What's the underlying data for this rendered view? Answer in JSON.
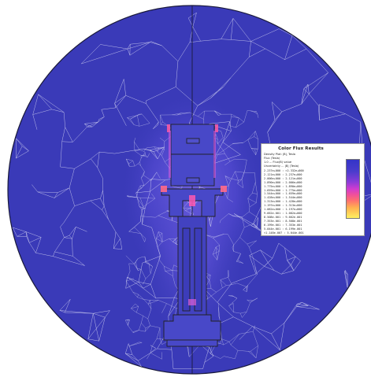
{
  "legend": {
    "title": "Color Flux Results",
    "meta_lines": [
      "Density Plot: |B|, Tesla",
      "Flux (Tesla)",
      "1.0 ... Flux(B) value",
      "Uncertainty ... |B| (Tesla)"
    ],
    "rows": [
      "2.237e+000 : >2.332e+000",
      "2.121e+000 : 2.237e+000",
      "2.006e+000 : 2.121e+000",
      "1.890e+000 : 2.006e+000",
      "1.775e+000 : 1.890e+000",
      "1.659e+000 : 1.775e+000",
      "1.544e+000 : 1.659e+000",
      "1.428e+000 : 1.544e+000",
      "1.313e+000 : 1.428e+000",
      "1.197e+000 : 1.313e+000",
      "1.082e+000 : 1.197e+000",
      "9.662e-001 : 1.082e+000",
      "8.508e-001 : 9.662e-001",
      "7.353e-001 : 8.508e-001",
      "6.199e-001 : 7.353e-001",
      "5.044e-001 : 6.199e-001",
      "<1.148e-007 : 5.044e-001"
    ]
  },
  "colors": {
    "background_field": "#3a3ab8",
    "high_flux": "#ff5a9a",
    "mid_flux": "#8a58e8",
    "mesh_line": "#c9c9ee",
    "outline": "#222222"
  }
}
